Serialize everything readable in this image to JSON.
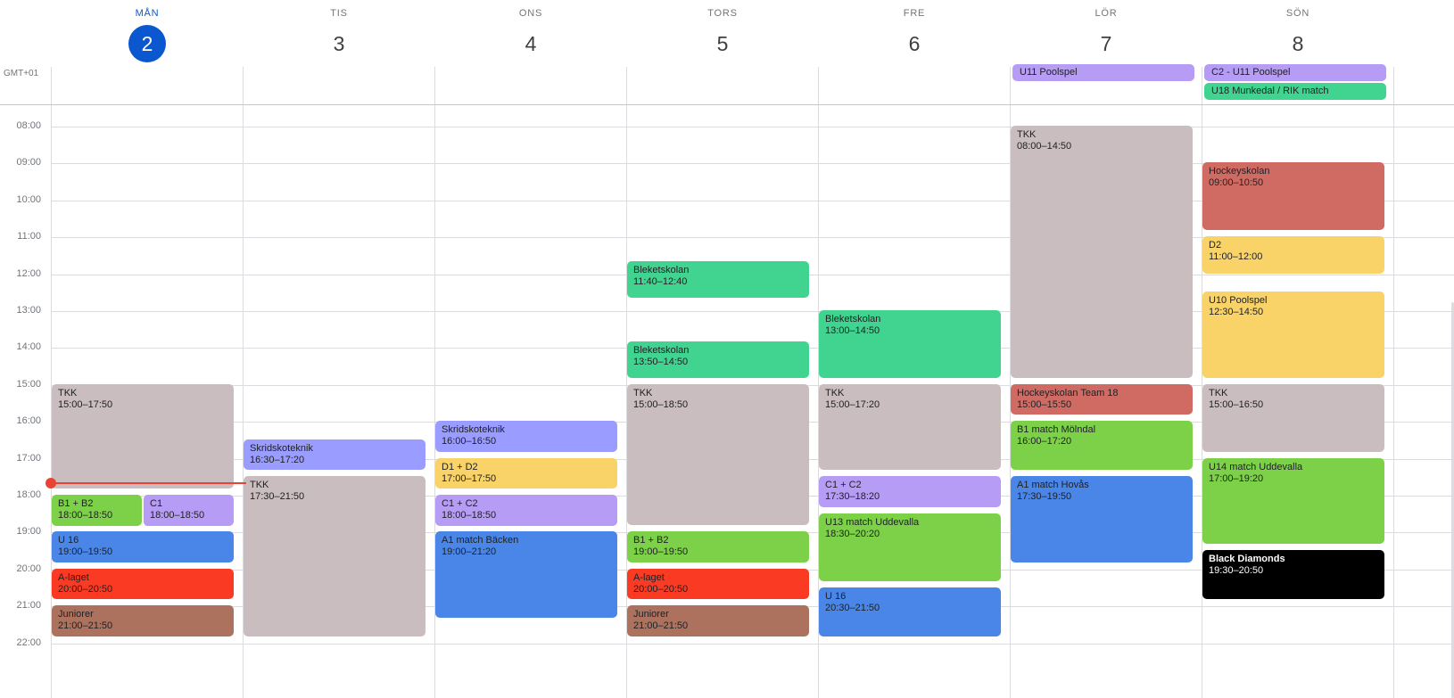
{
  "timezone": "GMT+01",
  "days": [
    {
      "name": "MÅN",
      "num": "2",
      "today": true
    },
    {
      "name": "TIS",
      "num": "3"
    },
    {
      "name": "ONS",
      "num": "4"
    },
    {
      "name": "TORS",
      "num": "5"
    },
    {
      "name": "FRE",
      "num": "6"
    },
    {
      "name": "LÖR",
      "num": "7"
    },
    {
      "name": "SÖN",
      "num": "8"
    }
  ],
  "hours": [
    "08:00",
    "09:00",
    "10:00",
    "11:00",
    "12:00",
    "13:00",
    "14:00",
    "15:00",
    "16:00",
    "17:00",
    "18:00",
    "19:00",
    "20:00",
    "21:00",
    "22:00"
  ],
  "now": "17:40",
  "colors": {
    "purple": "#b79cf5",
    "green": "#41d490",
    "lime": "#7cd148",
    "gray": "#cabdbf",
    "lavender": "#9a9cff",
    "yellow": "#f9d367",
    "blue": "#4986e7",
    "red": "#fa3a22",
    "brown": "#ac725e",
    "salmon": "#d06b64",
    "black": "#000000",
    "today": "#0b57d0",
    "now_line": "#ea4335"
  },
  "all_day_events": [
    {
      "day": 5,
      "title": "U11 Poolspel",
      "color": "purple"
    },
    {
      "day": 6,
      "title": "C2 - U11 Poolspel",
      "color": "purple"
    },
    {
      "day": 6,
      "title": "U18 Munkedal / RIK match",
      "color": "green"
    }
  ],
  "events": [
    {
      "day": 0,
      "title": "TKK",
      "time": "15:00–17:50",
      "start": "15:00",
      "end": "17:50",
      "color": "gray"
    },
    {
      "day": 0,
      "title": "B1 + B2",
      "time": "18:00–18:50",
      "start": "18:00",
      "end": "18:50",
      "color": "lime",
      "col": 0,
      "cols": 2
    },
    {
      "day": 0,
      "title": "C1",
      "time": "18:00–18:50",
      "start": "18:00",
      "end": "18:50",
      "color": "purple",
      "col": 1,
      "cols": 2
    },
    {
      "day": 0,
      "title": "U 16",
      "time": "19:00–19:50",
      "start": "19:00",
      "end": "19:50",
      "color": "blue"
    },
    {
      "day": 0,
      "title": "A-laget",
      "time": "20:00–20:50",
      "start": "20:00",
      "end": "20:50",
      "color": "red"
    },
    {
      "day": 0,
      "title": "Juniorer",
      "time": "21:00–21:50",
      "start": "21:00",
      "end": "21:50",
      "color": "brown"
    },
    {
      "day": 1,
      "title": "Skridskoteknik",
      "time": "16:30–17:20",
      "start": "16:30",
      "end": "17:20",
      "color": "lavender"
    },
    {
      "day": 1,
      "title": "TKK",
      "time": "17:30–21:50",
      "start": "17:30",
      "end": "21:50",
      "color": "gray"
    },
    {
      "day": 2,
      "title": "Skridskoteknik",
      "time": "16:00–16:50",
      "start": "16:00",
      "end": "16:50",
      "color": "lavender"
    },
    {
      "day": 2,
      "title": "D1 + D2",
      "time": "17:00–17:50",
      "start": "17:00",
      "end": "17:50",
      "color": "yellow"
    },
    {
      "day": 2,
      "title": "C1 + C2",
      "time": "18:00–18:50",
      "start": "18:00",
      "end": "18:50",
      "color": "purple"
    },
    {
      "day": 2,
      "title": "A1 match Bäcken",
      "time": "19:00–21:20",
      "start": "19:00",
      "end": "21:20",
      "color": "blue"
    },
    {
      "day": 3,
      "title": "Bleketskolan",
      "time": "11:40–12:40",
      "start": "11:40",
      "end": "12:40",
      "color": "green"
    },
    {
      "day": 3,
      "title": "Bleketskolan",
      "time": "13:50–14:50",
      "start": "13:50",
      "end": "14:50",
      "color": "green"
    },
    {
      "day": 3,
      "title": "TKK",
      "time": "15:00–18:50",
      "start": "15:00",
      "end": "18:50",
      "color": "gray"
    },
    {
      "day": 3,
      "title": "B1 + B2",
      "time": "19:00–19:50",
      "start": "19:00",
      "end": "19:50",
      "color": "lime"
    },
    {
      "day": 3,
      "title": "A-laget",
      "time": "20:00–20:50",
      "start": "20:00",
      "end": "20:50",
      "color": "red"
    },
    {
      "day": 3,
      "title": "Juniorer",
      "time": "21:00–21:50",
      "start": "21:00",
      "end": "21:50",
      "color": "brown"
    },
    {
      "day": 4,
      "title": "Bleketskolan",
      "time": "13:00–14:50",
      "start": "13:00",
      "end": "14:50",
      "color": "green"
    },
    {
      "day": 4,
      "title": "TKK",
      "time": "15:00–17:20",
      "start": "15:00",
      "end": "17:20",
      "color": "gray"
    },
    {
      "day": 4,
      "title": "C1 + C2",
      "time": "17:30–18:20",
      "start": "17:30",
      "end": "18:20",
      "color": "purple"
    },
    {
      "day": 4,
      "title": "U13 match Uddevalla",
      "time": "18:30–20:20",
      "start": "18:30",
      "end": "20:20",
      "color": "lime"
    },
    {
      "day": 4,
      "title": "U 16",
      "time": "20:30–21:50",
      "start": "20:30",
      "end": "21:50",
      "color": "blue"
    },
    {
      "day": 5,
      "title": "TKK",
      "time": "08:00–14:50",
      "start": "08:00",
      "end": "14:50",
      "color": "gray"
    },
    {
      "day": 5,
      "title": "Hockeyskolan Team 18",
      "time": "15:00–15:50",
      "start": "15:00",
      "end": "15:50",
      "color": "salmon"
    },
    {
      "day": 5,
      "title": "B1 match Mölndal",
      "time": "16:00–17:20",
      "start": "16:00",
      "end": "17:20",
      "color": "lime"
    },
    {
      "day": 5,
      "title": "A1 match Hovås",
      "time": "17:30–19:50",
      "start": "17:30",
      "end": "19:50",
      "color": "blue"
    },
    {
      "day": 6,
      "title": "Hockeyskolan",
      "time": "09:00–10:50",
      "start": "09:00",
      "end": "10:50",
      "color": "salmon"
    },
    {
      "day": 6,
      "title": "D2",
      "time": "11:00–12:00",
      "start": "11:00",
      "end": "12:00",
      "color": "yellow"
    },
    {
      "day": 6,
      "title": "U10 Poolspel",
      "time": "12:30–14:50",
      "start": "12:30",
      "end": "14:50",
      "color": "yellow"
    },
    {
      "day": 6,
      "title": "TKK",
      "time": "15:00–16:50",
      "start": "15:00",
      "end": "16:50",
      "color": "gray"
    },
    {
      "day": 6,
      "title": "U14 match Uddevalla",
      "time": "17:00–19:20",
      "start": "17:00",
      "end": "19:20",
      "color": "lime"
    },
    {
      "day": 6,
      "title": "Black Diamonds",
      "time": "19:30–20:50",
      "start": "19:30",
      "end": "20:50",
      "color": "black",
      "dark": true
    }
  ]
}
